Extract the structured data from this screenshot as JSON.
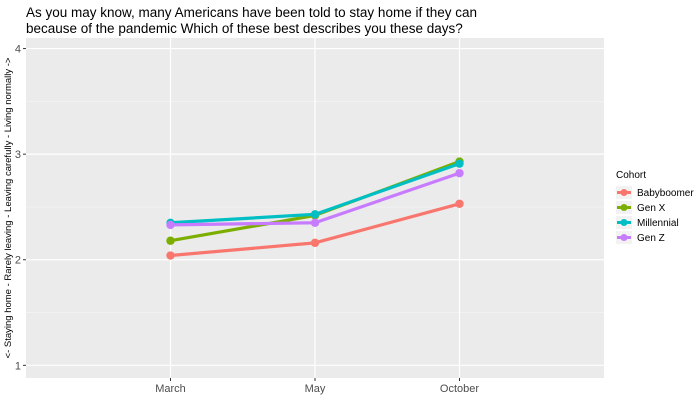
{
  "chart_data": {
    "type": "line",
    "title_lines": [
      "As you may know, many Americans have been told to stay home if they can",
      "because of the pandemic Which of these best describes you these days?"
    ],
    "xlabel": "",
    "ylabel": "<- Staying home - Rarely leaving - Leaving carefully - Living normally ->",
    "categories": [
      "March",
      "May",
      "October"
    ],
    "y_ticks": [
      "1",
      "2",
      "3",
      "4"
    ],
    "ylim": [
      0.88,
      4.1
    ],
    "grid": true,
    "legend_position": "right",
    "legend_title": "Cohort",
    "series": [
      {
        "name": "Babyboomer",
        "color": "#F8766D",
        "values": [
          2.04,
          2.16,
          2.53
        ]
      },
      {
        "name": "Gen X",
        "color": "#7CAE00",
        "values": [
          2.18,
          2.42,
          2.93
        ]
      },
      {
        "name": "Millennial",
        "color": "#00BFC4",
        "values": [
          2.35,
          2.43,
          2.91
        ]
      },
      {
        "name": "Gen Z",
        "color": "#C77CFF",
        "values": [
          2.33,
          2.35,
          2.82
        ]
      }
    ]
  }
}
